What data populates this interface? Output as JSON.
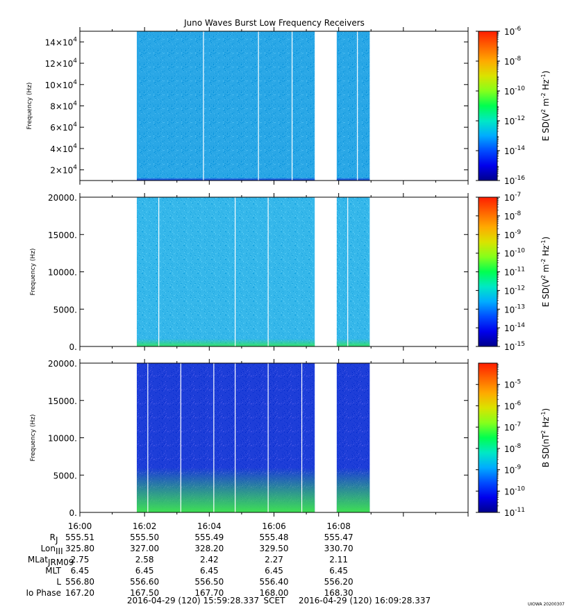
{
  "title": "Juno Waves Burst Low Frequency Receivers",
  "credit": "UIOWA 20200307",
  "colors": {
    "axis": "#000000",
    "gap": "#ffffff",
    "background": "#ffffff"
  },
  "chart_data": [
    {
      "type": "heatmap",
      "name": "panel-1",
      "ylabel": "Frequency (Hz)",
      "ylim": [
        10000,
        150000
      ],
      "yticks": [
        {
          "value": 20000,
          "label": "2×10",
          "exp": "4"
        },
        {
          "value": 40000,
          "label": "4×10",
          "exp": "4"
        },
        {
          "value": 60000,
          "label": "6×10",
          "exp": "4"
        },
        {
          "value": 80000,
          "label": "8×10",
          "exp": "4"
        },
        {
          "value": 100000,
          "label": "10×10",
          "exp": "4"
        },
        {
          "value": 120000,
          "label": "12×10",
          "exp": "4"
        },
        {
          "value": 140000,
          "label": "14×10",
          "exp": "4"
        }
      ],
      "data_segments_min": [
        [
          8.8,
          36.3
        ],
        [
          39.7,
          44.8
        ]
      ],
      "gap_lines_min": [
        19.1,
        27.6,
        32.8,
        42.9
      ],
      "colorbar": {
        "label_base": "E SD(V",
        "label_sup1": "2",
        "label_mid1": " m",
        "label_sup2": "-2",
        "label_mid2": " Hz",
        "label_sup3": "-1",
        "label_end": ")",
        "log_range": [
          -16,
          -6
        ],
        "ticks": [
          {
            "base": "10",
            "exp": "-16"
          },
          {
            "base": "10",
            "exp": "-14"
          },
          {
            "base": "10",
            "exp": "-12"
          },
          {
            "base": "10",
            "exp": "-10"
          },
          {
            "base": "10",
            "exp": "-8"
          },
          {
            "base": "10",
            "exp": "-6"
          }
        ],
        "tick_values": [
          -16,
          -14,
          -12,
          -10,
          -8,
          -6
        ]
      },
      "spectrum": {
        "bottom_color": "#1a2fd0",
        "band_frac": 0.02,
        "main_color": "#2aa7e6"
      }
    },
    {
      "type": "heatmap",
      "name": "panel-2",
      "ylabel": "Frequency (Hz)",
      "ylim": [
        0,
        20000
      ],
      "yticks": [
        {
          "value": 0,
          "label": "0."
        },
        {
          "value": 5000,
          "label": "5000."
        },
        {
          "value": 10000,
          "label": "10000."
        },
        {
          "value": 15000,
          "label": "15000."
        },
        {
          "value": 20000,
          "label": "20000."
        }
      ],
      "data_segments_min": [
        [
          8.8,
          36.3
        ],
        [
          39.7,
          44.8
        ]
      ],
      "gap_lines_min": [
        12.2,
        24.0,
        29.1,
        41.4
      ],
      "colorbar": {
        "label_base": "E SD(V",
        "label_sup1": "2",
        "label_mid1": " m",
        "label_sup2": "-2",
        "label_mid2": " Hz",
        "label_sup3": "-1",
        "label_end": ")",
        "log_range": [
          -15,
          -7
        ],
        "ticks": [
          {
            "base": "10",
            "exp": "-15"
          },
          {
            "base": "10",
            "exp": "-14"
          },
          {
            "base": "10",
            "exp": "-13"
          },
          {
            "base": "10",
            "exp": "-12"
          },
          {
            "base": "10",
            "exp": "-11"
          },
          {
            "base": "10",
            "exp": "-10"
          },
          {
            "base": "10",
            "exp": "-9"
          },
          {
            "base": "10",
            "exp": "-8"
          },
          {
            "base": "10",
            "exp": "-7"
          }
        ],
        "tick_values": [
          -15,
          -14,
          -13,
          -12,
          -11,
          -10,
          -9,
          -8,
          -7
        ]
      },
      "spectrum": {
        "bottom_color": "#33e06a",
        "band_frac": 0.05,
        "main_color": "#36b7ea"
      }
    },
    {
      "type": "heatmap",
      "name": "panel-3",
      "ylabel": "Frequency (Hz)",
      "ylim": [
        0,
        20000
      ],
      "yticks": [
        {
          "value": 0,
          "label": "0."
        },
        {
          "value": 5000,
          "label": "5000."
        },
        {
          "value": 10000,
          "label": "10000."
        },
        {
          "value": 15000,
          "label": "15000."
        },
        {
          "value": 20000,
          "label": "20000."
        }
      ],
      "data_segments_min": [
        [
          8.8,
          36.3
        ],
        [
          39.7,
          44.8
        ]
      ],
      "gap_lines_min": [
        10.5,
        15.6,
        20.7,
        24.0,
        29.1,
        34.3
      ],
      "colorbar": {
        "label_base": "B SD(nT",
        "label_sup1": "2",
        "label_mid1": " Hz",
        "label_sup2": "-1",
        "label_mid2": "",
        "label_sup3": "",
        "label_end": ")",
        "log_range": [
          -11,
          -4
        ],
        "ticks": [
          {
            "base": "10",
            "exp": "-11"
          },
          {
            "base": "10",
            "exp": "-10"
          },
          {
            "base": "10",
            "exp": "-9"
          },
          {
            "base": "10",
            "exp": "-8"
          },
          {
            "base": "10",
            "exp": "-7"
          },
          {
            "base": "10",
            "exp": "-6"
          },
          {
            "base": "10",
            "exp": "-5"
          }
        ],
        "tick_values": [
          -11,
          -10,
          -9,
          -8,
          -7,
          -6,
          -5
        ]
      },
      "spectrum": {
        "bottom_color": "#3ee054",
        "band_frac": 0.3,
        "main_color": "#1e3ed8"
      }
    }
  ],
  "time_axis": {
    "start_min": 0,
    "end_min": 60,
    "tick_labels": [
      "16:00",
      "16:02",
      "16:04",
      "16:06",
      "16:08"
    ],
    "tick_values_min": [
      0,
      10,
      20,
      30,
      40
    ]
  },
  "ephemeris": [
    {
      "label": "R",
      "sub": "J",
      "values": [
        "555.51",
        "555.50",
        "555.49",
        "555.48",
        "555.47"
      ]
    },
    {
      "label": "Lon",
      "sub": "III",
      "values": [
        "325.80",
        "327.00",
        "328.20",
        "329.50",
        "330.70"
      ]
    },
    {
      "label": "MLat",
      "sub": "JRM09",
      "values": [
        "2.75",
        "2.58",
        "2.42",
        "2.27",
        "2.11"
      ]
    },
    {
      "label": "MLT",
      "sub": "",
      "values": [
        "6.45",
        "6.45",
        "6.45",
        "6.45",
        "6.45"
      ]
    },
    {
      "label": "L",
      "sub": "",
      "values": [
        "556.80",
        "556.60",
        "556.50",
        "556.40",
        "556.20"
      ]
    },
    {
      "label": "Io Phase",
      "sub": "",
      "values": [
        "167.20",
        "167.50",
        "167.70",
        "168.00",
        "168.30"
      ]
    }
  ],
  "footer": {
    "start": "2016-04-29 (120) 15:59:28.337",
    "scet": "SCET",
    "end": "2016-04-29 (120) 16:09:28.337"
  }
}
